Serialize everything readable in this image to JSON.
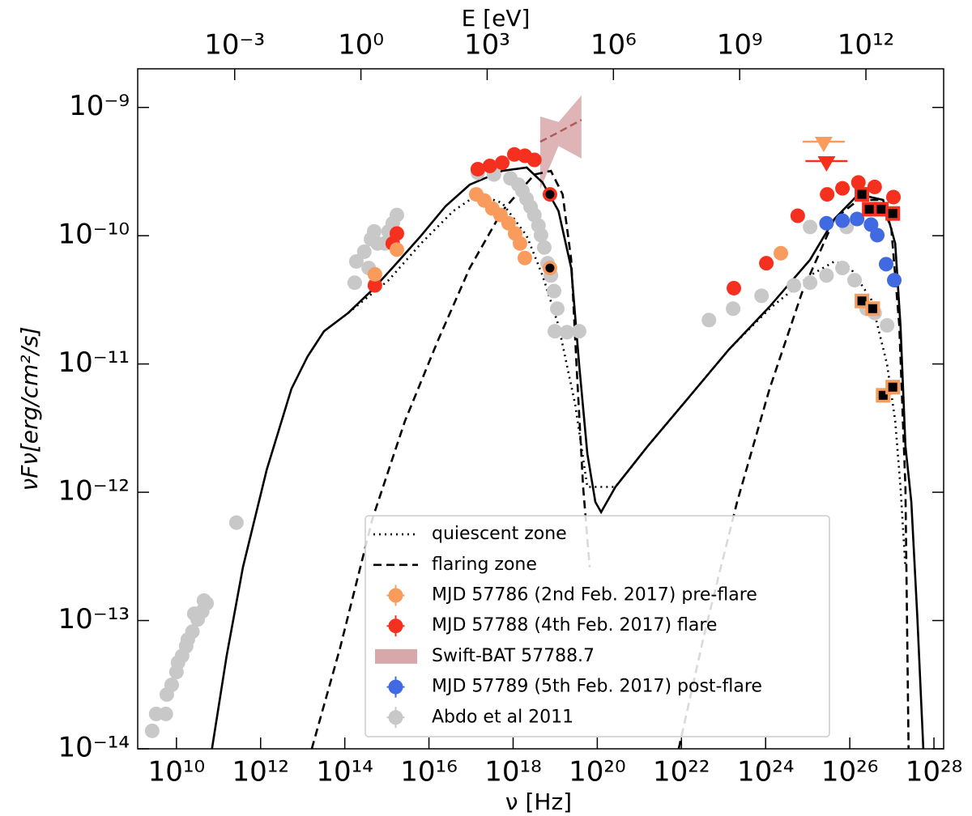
{
  "chart_data": {
    "type": "scatter",
    "xlabel": "ν [Hz]",
    "x2label": "E [eV]",
    "ylabel": "νFν[erg/cm²/s]",
    "log_x": true,
    "log_y": true,
    "xlim": [
      1200000000.0,
      1.7e+28
    ],
    "x2lim": [
      4.96e-06,
      70300000000000.0
    ],
    "ylim": [
      1e-14,
      2e-09
    ],
    "xticks": [
      {
        "value": 10000000000.0,
        "label": "10¹⁰"
      },
      {
        "value": 1000000000000.0,
        "label": "10¹²"
      },
      {
        "value": 100000000000000.0,
        "label": "10¹⁴"
      },
      {
        "value": 1e+16,
        "label": "10¹⁶"
      },
      {
        "value": 1e+18,
        "label": "10¹⁸"
      },
      {
        "value": 1e+20,
        "label": "10²⁰"
      },
      {
        "value": 1e+22,
        "label": "10²²"
      },
      {
        "value": 1e+24,
        "label": "10²⁴"
      },
      {
        "value": 1e+26,
        "label": "10²⁶"
      },
      {
        "value": 1e+28,
        "label": "10²⁸"
      }
    ],
    "x2ticks": [
      {
        "value": 0.001,
        "label": "10⁻³"
      },
      {
        "value": 1,
        "label": "10⁰"
      },
      {
        "value": 1000.0,
        "label": "10³"
      },
      {
        "value": 1000000.0,
        "label": "10⁶"
      },
      {
        "value": 1000000000.0,
        "label": "10⁹"
      },
      {
        "value": 1000000000000.0,
        "label": "10¹²"
      }
    ],
    "yticks": [
      {
        "value": 1e-09,
        "label": "10⁻⁹"
      },
      {
        "value": 1e-10,
        "label": "10⁻¹⁰"
      },
      {
        "value": 1e-11,
        "label": "10⁻¹¹"
      },
      {
        "value": 1e-12,
        "label": "10⁻¹²"
      },
      {
        "value": 1e-13,
        "label": "10⁻¹³"
      },
      {
        "value": 1e-14,
        "label": "10⁻¹⁴"
      }
    ],
    "legend": "lower center",
    "series": [
      {
        "kind": "line",
        "dash": "solid",
        "color": "#000000",
        "x": [
          70000000000.0,
          156000000000.0,
          380000000000.0,
          1400000000000.0,
          5400000000000.0,
          13000000000000.0,
          32000000000000.0,
          120000000000000.0,
          460000000000000.0,
          1700000000000000.0,
          6500000000000000.0,
          2.5e+16,
          9.3e+16,
          5.5e+17,
          2.1e+18,
          5e+18,
          1.2e+19,
          2.4e+19,
          3.7e+19,
          5.8e+19,
          9e+19,
          1.23e+20,
          2.7e+20,
          1.6e+21,
          1.5e+22,
          1.35e+23,
          1.24e+24,
          1.14e+25,
          4.3e+25,
          1.6e+26,
          6.2e+26,
          1.2e+27,
          1.6e+27,
          2.1e+27,
          2.9e+27,
          4e+27,
          5.6e+27
        ],
        "values": [
          1e-14,
          5.3e-14,
          2.6e-13,
          1.5e-12,
          6.4e-12,
          1.14e-11,
          1.8e-11,
          2.5e-11,
          3.8e-11,
          6.1e-11,
          1e-10,
          1.7e-10,
          2.5e-10,
          3.2e-10,
          3.4e-10,
          2.6e-10,
          1.56e-10,
          5.6e-11,
          9.9e-12,
          2e-12,
          8.4e-13,
          7e-13,
          1.1e-12,
          2.3e-12,
          5.5e-12,
          1.3e-11,
          2.8e-11,
          6.5e-11,
          1.35e-10,
          2.1e-10,
          1.9e-10,
          8.7e-11,
          2e-11,
          2.3e-12,
          8.4e-13,
          1.1e-13,
          1e-14
        ]
      },
      {
        "kind": "line",
        "dash": "dotted",
        "color": "#000000",
        "name": "quiescent zone",
        "x": [
          120000000000000.0,
          1100000000000000.0,
          6500000000000000.0,
          3.8e+16,
          1.45e+17,
          5.5e+17,
          2.1e+18,
          5e+18,
          1.2e+19,
          3e+19,
          5.8e+19,
          2.7e+20,
          1.6e+21,
          1.5e+22,
          1.35e+23,
          1.24e+24,
          1.14e+25,
          4.3e+25,
          1.04e+26,
          3.2e+26,
          7.7e+26,
          1.2e+27,
          1.6e+27,
          2.1e+27
        ],
        "values": [
          2.5e-11,
          4.5e-11,
          8.7e-11,
          1.56e-10,
          2.1e-10,
          1.8e-10,
          1e-10,
          4.9e-11,
          2e-11,
          4.8e-12,
          1.1e-12,
          1.1e-12,
          2.3e-12,
          5.5e-12,
          1.3e-11,
          2.7e-11,
          4.9e-11,
          6.3e-11,
          5.6e-11,
          3.2e-11,
          9.9e-12,
          3.6e-12,
          1.1e-12,
          2.6e-13
        ]
      },
      {
        "kind": "line",
        "dash": "dashed",
        "color": "#000000",
        "name": "flaring zone",
        "x": [
          16400000000000.0,
          77000000000000.0,
          460000000000000.0,
          2700000000000000.0,
          1.6e+16,
          9.3e+16,
          5.5e+17,
          3.2e+18,
          7.9e+18,
          1.5e+19,
          2.4e+19,
          3.2e+19,
          4.6e+19,
          6.6e+19,
          null,
          8.6e+21,
          3.6e+22,
          2.1e+23,
          1.24e+24,
          7.3e+24,
          4.3e+25,
          1.6e+26,
          4.9e+26,
          9.6e+26,
          1.5e+27,
          2.1e+27,
          2.5e+27
        ],
        "values": [
          1e-14,
          6.1e-14,
          6.3e-13,
          3.6e-12,
          1.5e-11,
          5.6e-11,
          1.56e-10,
          3e-10,
          3.2e-10,
          2.1e-10,
          6.5e-11,
          9.9e-12,
          1.1e-12,
          2.6e-13,
          null,
          1e-14,
          8.2e-14,
          8.4e-13,
          6.4e-12,
          3.6e-11,
          1.35e-10,
          1.9e-10,
          1.9e-10,
          1.17e-10,
          2e-11,
          1.1e-12,
          1e-14
        ]
      },
      {
        "kind": "points",
        "color": "#f99b5c",
        "name": "MJD 57786 (2nd Feb. 2017) pre-flare",
        "x": [
          520000000000000.0,
          1730000000000000.0,
          1.33e+17,
          2.07e+17,
          3.2e+17,
          5e+17,
          7.8e+17,
          1.12e+18,
          1.46e+18,
          1.9e+18,
          2.3e+24
        ],
        "values": [
          5e-11,
          7.8e-11,
          2.1e-10,
          1.88e-10,
          1.63e-10,
          1.45e-10,
          1.25e-10,
          1.04e-10,
          8.7e-11,
          6.7e-11,
          7.3e-11
        ],
        "highlight": {
          "x": [
            7.5e+18
          ],
          "values": [
            5.6e-11
          ]
        },
        "upper_limits": {
          "x": [
            2.4e+25
          ],
          "values": [
            5.1e-10
          ]
        },
        "squares": {
          "x": [
            1.94e+26,
            3.5e+26,
            6.2e+26,
            1.05e+27
          ],
          "values": [
            3.1e-11,
            2.7e-11,
            5.7e-12,
            6.6e-12
          ]
        }
      },
      {
        "kind": "points",
        "color": "#f5301f",
        "name": "MJD 57788 (4th Feb. 2017) flare",
        "x": [
          520000000000000.0,
          1380000000000000.0,
          1730000000000000.0,
          1.45e+17,
          2.8e+17,
          5.5e+17,
          1.07e+18,
          1.9e+18,
          3.2e+18,
          1.76e+23,
          1.04e+24,
          5.8e+24,
          2.9e+25,
          6.7e+25,
          1.6e+26,
          3.9e+26,
          1.09e+27
        ],
        "values": [
          4.1e-11,
          8.7e-11,
          1.04e-10,
          3.3e-10,
          3.5e-10,
          3.7e-10,
          4.3e-10,
          4.2e-10,
          3.9e-10,
          3.9e-11,
          6.1e-11,
          1.43e-10,
          2.1e-10,
          2.34e-10,
          2.6e-10,
          2.4e-10,
          2e-10
        ],
        "highlight": {
          "x": [
            7.5e+18
          ],
          "values": [
            2.1e-10
          ]
        },
        "upper_limits": {
          "x": [
            2.8e+25
          ],
          "values": [
            3.6e-10
          ]
        },
        "squares": {
          "x": [
            1.94e+26,
            2.9e+26,
            5.6e+26,
            1.05e+27
          ],
          "values": [
            2.1e-10,
            1.61e-10,
            1.61e-10,
            1.49e-10
          ]
        }
      },
      {
        "kind": "band",
        "color": "#d8a7a9",
        "line_color": "#b05a5a",
        "name": "Swift-BAT 57788.7",
        "x": [
          4.4e+18,
          1.2e+19,
          4.2e+19
        ],
        "values": [
          5.4e-10,
          6.4e-10,
          8e-10
        ],
        "low": [
          2.3e-10,
          5e-10,
          4e-10
        ],
        "high": [
          8.5e-10,
          7.7e-10,
          1.24e-09
        ]
      },
      {
        "kind": "points",
        "color": "#4169e1",
        "name": "MJD 57789 (5th Feb. 2017) post-flare",
        "x": [
          2.8e+25,
          6.7e+25,
          1.49e+26,
          3.2e+26,
          4.5e+26,
          7.3e+26,
          1.14e+27
        ],
        "values": [
          1.25e-10,
          1.31e-10,
          1.35e-10,
          1.22e-10,
          1.01e-10,
          6e-11,
          4.5e-11
        ]
      },
      {
        "kind": "points",
        "color": "#c8c8c8",
        "name": "Abdo et al 2011",
        "x": [
          2650000000.0,
          3300000000.0,
          5600000000.0,
          5900000000.0,
          7700000000.0,
          10000000000.0,
          10900000000.0,
          13600000000.0,
          17000000000.0,
          18600000000.0,
          24000000000.0,
          32000000000.0,
          41000000000.0,
          52000000000.0,
          26500000000.0,
          45000000000.0,
          266000000000.0,
          172000000000000.0,
          188000000000000.0,
          290000000000000.0,
          370000000000000.0,
          500000000000000.0,
          600000000000000.0,
          890000000000000.0,
          1100000000000000.0,
          1380000000000000.0,
          1730000000000000.0,
          420000000000000.0,
          1.45e+17,
          3.5e+17,
          8.6e+17,
          1.33e+18,
          1.66e+18,
          2.08e+18,
          2.6e+18,
          3.2e+18,
          4e+18,
          4.6e+18,
          5.5e+18,
          6.6e+18,
          7.9e+18,
          9.4e+18,
          1.12e+19,
          9.8e+18,
          1.9e+19,
          3.7e+19,
          4.5e+22,
          1.69e+23,
          8e+23,
          4.7e+24,
          1.14e+25,
          2.8e+25,
          6.7e+25,
          1.3e+26,
          2.5e+26,
          3.9e+26,
          7.7e+26,
          1.14e+25,
          8.4e+25
        ],
        "values": [
          1.38e-14,
          1.87e-14,
          1.87e-14,
          2.65e-14,
          3.15e-14,
          3.97e-14,
          4.7e-14,
          5.3e-14,
          6.3e-14,
          7.1e-14,
          8.2e-14,
          1.02e-13,
          1.18e-13,
          1.36e-13,
          1.13e-13,
          1.43e-13,
          5.8e-13,
          4.3e-11,
          6.3e-11,
          7.5e-11,
          5.6e-11,
          1.08e-10,
          8.7e-11,
          8.7e-11,
          1.08e-10,
          1.25e-10,
          1.45e-10,
          9.4e-11,
          3.1e-10,
          3e-10,
          2.8e-10,
          2.5e-10,
          2.24e-10,
          1.94e-10,
          1.68e-10,
          1.45e-10,
          1.2e-10,
          1.01e-10,
          8.1e-11,
          6.1e-11,
          4.9e-11,
          3.7e-11,
          2.7e-11,
          1.8e-11,
          1.77e-11,
          1.8e-11,
          2.2e-11,
          2.7e-11,
          3.4e-11,
          4.1e-11,
          4.3e-11,
          4.9e-11,
          5.6e-11,
          4.5e-11,
          2.7e-11,
          2.5e-11,
          2e-11,
          1.17e-10,
          1.17e-10
        ]
      }
    ]
  }
}
